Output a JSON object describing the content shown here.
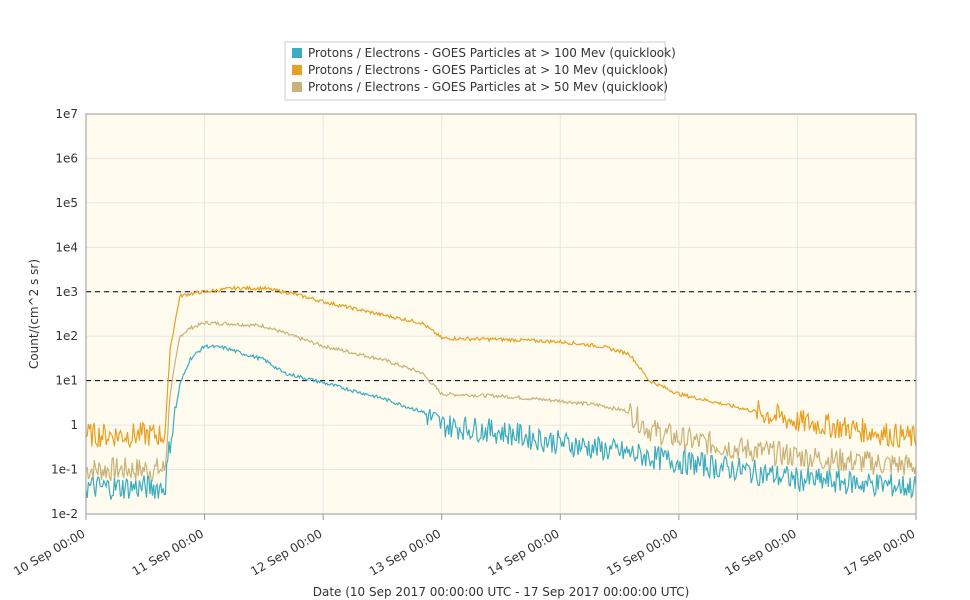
{
  "chart_data": {
    "type": "line",
    "title": "",
    "xlabel": "Date (10 Sep 2017 00:00:00 UTC - 17 Sep 2017 00:00:00 UTC)",
    "ylabel": "Count/(cm^2 s sr)",
    "y_scale": "log",
    "ylim": [
      0.01,
      10000000
    ],
    "xlim": [
      "2017-09-10T00:00",
      "2017-09-17T00:00"
    ],
    "y_ticks": [
      "1e-2",
      "1e-1",
      "1",
      "1e1",
      "1e2",
      "1e3",
      "1e4",
      "1e5",
      "1e6",
      "1e7"
    ],
    "x_ticks": [
      "10 Sep 00:00",
      "11 Sep 00:00",
      "12 Sep 00:00",
      "13 Sep 00:00",
      "14 Sep 00:00",
      "15 Sep 00:00",
      "16 Sep 00:00",
      "17 Sep 00:00"
    ],
    "grid": true,
    "legend_position": "top-center",
    "thresholds": [
      10,
      1000
    ],
    "series": [
      {
        "name": "Protons / Electrons - GOES Particles at > 100 Mev (quicklook)",
        "color": "#3aacc2",
        "x": [
          "2017-09-10T00:00",
          "2017-09-10T12:00",
          "2017-09-10T16:00",
          "2017-09-10T17:00",
          "2017-09-10T19:00",
          "2017-09-10T21:00",
          "2017-09-11T00:00",
          "2017-09-11T04:00",
          "2017-09-11T08:00",
          "2017-09-11T12:00",
          "2017-09-11T16:00",
          "2017-09-12T00:00",
          "2017-09-12T12:00",
          "2017-09-12T20:00",
          "2017-09-13T00:00",
          "2017-09-13T12:00",
          "2017-09-14T00:00",
          "2017-09-14T12:00",
          "2017-09-15T00:00",
          "2017-09-15T12:00",
          "2017-09-16T00:00",
          "2017-09-16T12:00",
          "2017-09-17T00:00"
        ],
        "values": [
          0.04,
          0.04,
          0.04,
          0.4,
          8,
          30,
          60,
          55,
          40,
          30,
          15,
          9,
          4,
          2,
          1,
          0.7,
          0.4,
          0.25,
          0.15,
          0.1,
          0.06,
          0.05,
          0.04
        ]
      },
      {
        "name": "Protons / Electrons - GOES Particles at > 10 Mev (quicklook)",
        "color": "#e8a020",
        "x": [
          "2017-09-10T00:00",
          "2017-09-10T12:00",
          "2017-09-10T16:00",
          "2017-09-10T17:00",
          "2017-09-10T19:00",
          "2017-09-10T21:00",
          "2017-09-11T00:00",
          "2017-09-11T06:00",
          "2017-09-11T12:00",
          "2017-09-11T18:00",
          "2017-09-12T00:00",
          "2017-09-12T12:00",
          "2017-09-12T20:00",
          "2017-09-13T00:00",
          "2017-09-13T12:00",
          "2017-09-14T00:00",
          "2017-09-14T08:00",
          "2017-09-14T14:00",
          "2017-09-14T18:00",
          "2017-09-15T00:00",
          "2017-09-15T12:00",
          "2017-09-16T00:00",
          "2017-09-16T12:00",
          "2017-09-17T00:00"
        ],
        "values": [
          0.6,
          0.6,
          0.6,
          50,
          800,
          900,
          1000,
          1200,
          1200,
          900,
          600,
          300,
          200,
          90,
          85,
          75,
          60,
          40,
          10,
          5,
          2.5,
          1.2,
          0.8,
          0.5
        ]
      },
      {
        "name": "Protons / Electrons - GOES Particles at > 50 Mev (quicklook)",
        "color": "#c9b277",
        "x": [
          "2017-09-10T00:00",
          "2017-09-10T12:00",
          "2017-09-10T16:00",
          "2017-09-10T17:00",
          "2017-09-10T19:00",
          "2017-09-10T21:00",
          "2017-09-11T00:00",
          "2017-09-11T06:00",
          "2017-09-11T12:00",
          "2017-09-11T18:00",
          "2017-09-12T00:00",
          "2017-09-12T12:00",
          "2017-09-12T20:00",
          "2017-09-13T00:00",
          "2017-09-13T12:00",
          "2017-09-14T00:00",
          "2017-09-14T08:00",
          "2017-09-14T14:00",
          "2017-09-14T18:00",
          "2017-09-15T00:00",
          "2017-09-15T12:00",
          "2017-09-16T00:00",
          "2017-09-16T12:00",
          "2017-09-17T00:00"
        ],
        "values": [
          0.1,
          0.1,
          0.1,
          5,
          100,
          150,
          200,
          190,
          170,
          100,
          60,
          30,
          15,
          5,
          4.5,
          3.5,
          2.8,
          2,
          0.8,
          0.5,
          0.3,
          0.2,
          0.15,
          0.12
        ]
      }
    ]
  }
}
